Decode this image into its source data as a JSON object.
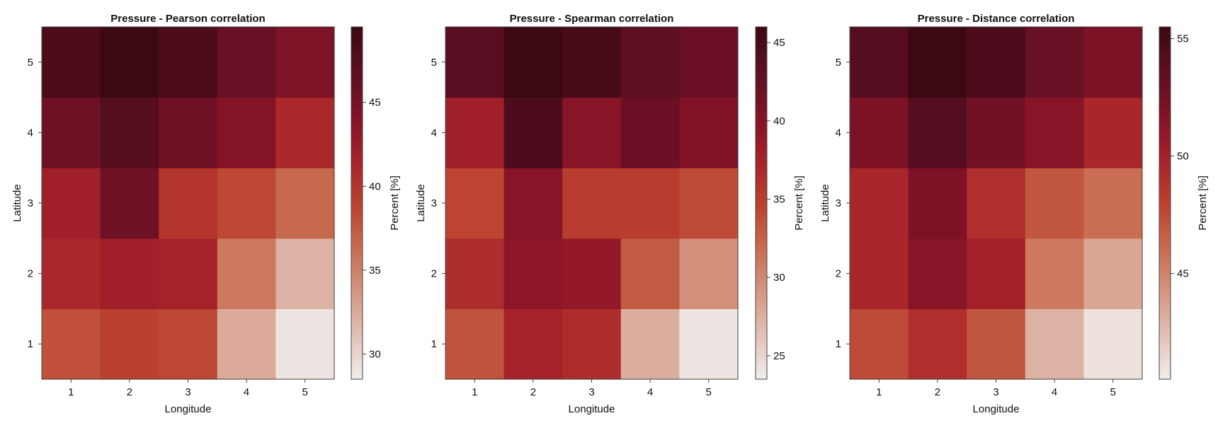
{
  "chart_data": [
    {
      "type": "heatmap",
      "title": "Pressure - Pearson correlation",
      "xlabel": "Longitude",
      "ylabel": "Latitude",
      "x": [
        1,
        2,
        3,
        4,
        5
      ],
      "y": [
        1,
        2,
        3,
        4,
        5
      ],
      "values": [
        [
          38.0,
          39.0,
          38.5,
          32.5,
          29.0
        ],
        [
          41.0,
          42.0,
          41.5,
          35.5,
          32.0
        ],
        [
          42.0,
          45.5,
          40.0,
          38.5,
          36.5
        ],
        [
          45.5,
          47.5,
          45.5,
          44.0,
          41.0
        ],
        [
          48.0,
          49.5,
          48.0,
          46.0,
          44.5
        ]
      ],
      "colorbar": {
        "label": "Percent [%]",
        "range": [
          28.5,
          49.5
        ],
        "ticks": [
          30,
          35,
          40,
          45
        ]
      },
      "grid": false
    },
    {
      "type": "heatmap",
      "title": "Pressure - Spearman correlation",
      "xlabel": "Longitude",
      "ylabel": "Latitude",
      "x": [
        1,
        2,
        3,
        4,
        5
      ],
      "y": [
        1,
        2,
        3,
        4,
        5
      ],
      "values": [
        [
          33.5,
          37.5,
          36.5,
          27.5,
          24.0
        ],
        [
          36.5,
          39.5,
          39.0,
          33.0,
          29.5
        ],
        [
          34.5,
          40.0,
          35.0,
          35.0,
          34.0
        ],
        [
          38.0,
          44.5,
          40.0,
          42.0,
          40.5
        ],
        [
          43.5,
          46.0,
          45.0,
          43.0,
          42.0
        ]
      ],
      "colorbar": {
        "label": "Percent [%]",
        "range": [
          23.5,
          46.0
        ],
        "ticks": [
          25,
          30,
          35,
          40,
          45
        ]
      },
      "grid": false
    },
    {
      "type": "heatmap",
      "title": "Pressure - Distance correlation",
      "xlabel": "Longitude",
      "ylabel": "Latitude",
      "x": [
        1,
        2,
        3,
        4,
        5
      ],
      "y": [
        1,
        2,
        3,
        4,
        5
      ],
      "values": [
        [
          47.5,
          49.0,
          47.0,
          43.0,
          41.0
        ],
        [
          49.5,
          51.5,
          50.0,
          45.5,
          43.5
        ],
        [
          49.5,
          52.0,
          49.0,
          47.0,
          46.0
        ],
        [
          52.0,
          54.0,
          52.5,
          51.5,
          49.5
        ],
        [
          54.0,
          55.5,
          54.5,
          53.0,
          52.0
        ]
      ],
      "colorbar": {
        "label": "Percent [%]",
        "range": [
          40.5,
          55.5
        ],
        "ticks": [
          45,
          50,
          55
        ]
      },
      "grid": false
    }
  ],
  "colormap": {
    "name": "amp",
    "stops": [
      "#f1ecec",
      "#e2c1b6",
      "#d49581",
      "#c86b4f",
      "#bb402e",
      "#a5212a",
      "#821227",
      "#5b0f22",
      "#3c0912"
    ]
  }
}
